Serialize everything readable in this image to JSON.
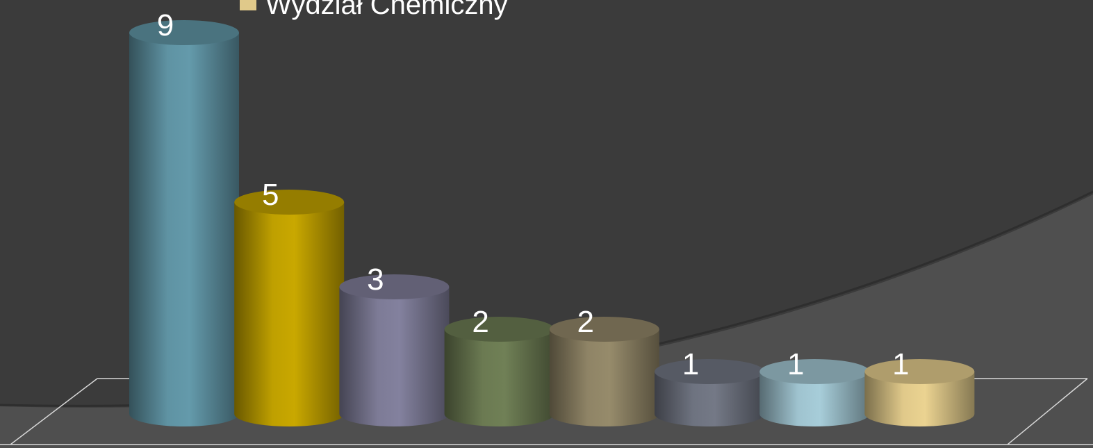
{
  "chart_data": {
    "type": "cylinder-bar",
    "categories": [
      null,
      null,
      null,
      null,
      null,
      null,
      null,
      "Wydział Chemiczny"
    ],
    "values": [
      9,
      5,
      3,
      2,
      2,
      1,
      1,
      1
    ],
    "colors": [
      "#5f93a3",
      "#bfa000",
      "#7d7b96",
      "#6b7a52",
      "#8f8466",
      "#6e7380",
      "#9fc3cf",
      "#e0c98a"
    ],
    "legend": "top"
  }
}
